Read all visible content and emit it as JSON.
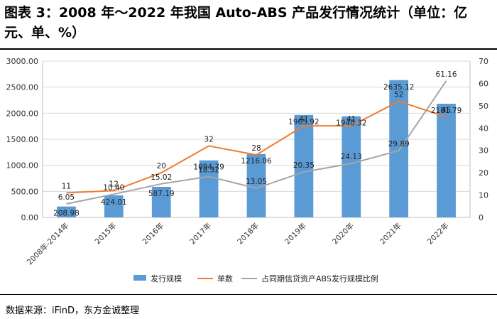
{
  "title": "图表 3：2008 年～2022 年我国 Auto-ABS 产品发行情况统计（单位：亿元、单、%）",
  "source": "数据来源：iFinD，东方金诚整理",
  "colors": {
    "bar": "#5b9bd5",
    "count_line": "#ed7d31",
    "ratio_line": "#a5a5a5"
  },
  "chart_data": {
    "type": "bar",
    "categories": [
      "2008年-2014年",
      "2015年",
      "2016年",
      "2017年",
      "2018年",
      "2019年",
      "2020年",
      "2021年",
      "2022年"
    ],
    "series": [
      {
        "name": "发行规模",
        "type": "bar",
        "axis": "left",
        "values": [
          208.98,
          424.01,
          587.19,
          1094.79,
          1216.06,
          1965.92,
          1940.32,
          2635.12,
          2181.79
        ],
        "labels": [
          "208.98",
          "424.01",
          "587.19",
          "1094.79",
          "1216.06",
          "1965.92",
          "1940.32",
          "2635.12",
          "2181.79"
        ]
      },
      {
        "name": "单数",
        "type": "line",
        "axis": "right",
        "values": [
          11,
          12,
          20,
          32,
          28,
          41,
          41,
          52,
          45
        ],
        "labels": [
          "11",
          "12",
          "20",
          "32",
          "28",
          "41",
          "41",
          "52",
          "45"
        ]
      },
      {
        "name": "占同期信贷资产ABS发行规模比例",
        "type": "line",
        "axis": "right",
        "values": [
          6.05,
          10.4,
          15.02,
          18.32,
          13.05,
          20.35,
          24.13,
          29.89,
          61.16
        ],
        "labels": [
          "6.05",
          "10.40",
          "15.02",
          "18.32",
          "13.05",
          "20.35",
          "24.13",
          "29.89",
          "61.16"
        ]
      }
    ],
    "y_left": {
      "min": 0,
      "max": 3000,
      "ticks": [
        "0.00",
        "500.00",
        "1000.00",
        "1500.00",
        "2000.00",
        "2500.00",
        "3000.00"
      ]
    },
    "y_right": {
      "min": 0,
      "max": 70,
      "ticks": [
        "0",
        "10",
        "20",
        "30",
        "40",
        "50",
        "60",
        "70"
      ]
    },
    "legend": [
      "发行规模",
      "单数",
      "占同期信贷资产ABS发行规模比例"
    ]
  }
}
